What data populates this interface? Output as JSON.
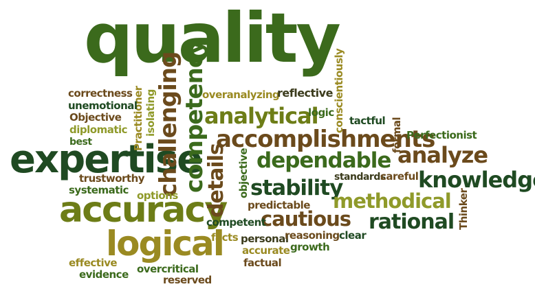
{
  "palette": {
    "dark_green": "#1f4a22",
    "green": "#3b6a1c",
    "olive": "#6d7d17",
    "brown": "#6b4a1c",
    "gold": "#9a8a22",
    "light_olive": "#8f9a2a"
  },
  "words": [
    {
      "id": "quality",
      "text": "quality"
    },
    {
      "id": "expertise",
      "text": "expertise"
    },
    {
      "id": "accuracy",
      "text": "accuracy"
    },
    {
      "id": "logical",
      "text": "logical"
    },
    {
      "id": "accomplishments",
      "text": "accomplishments"
    },
    {
      "id": "analytical",
      "text": "analytical"
    },
    {
      "id": "dependable",
      "text": "dependable"
    },
    {
      "id": "stability",
      "text": "stability"
    },
    {
      "id": "methodical",
      "text": "methodical"
    },
    {
      "id": "knowledge",
      "text": "knowledge"
    },
    {
      "id": "analyze",
      "text": "analyze"
    },
    {
      "id": "cautious",
      "text": "cautious"
    },
    {
      "id": "rational",
      "text": "rational"
    },
    {
      "id": "challenging",
      "text": "challenging"
    },
    {
      "id": "competency",
      "text": "competency"
    },
    {
      "id": "details",
      "text": "details"
    },
    {
      "id": "isolating",
      "text": "isolating"
    },
    {
      "id": "practitioner",
      "text": "Practitioner"
    },
    {
      "id": "conscientiously",
      "text": "conscientiously"
    },
    {
      "id": "objective_v",
      "text": "objective"
    },
    {
      "id": "formal",
      "text": "formal"
    },
    {
      "id": "thinker",
      "text": "Thinker"
    },
    {
      "id": "correctness",
      "text": "correctness"
    },
    {
      "id": "unemotional",
      "text": "unemotional"
    },
    {
      "id": "objective_h",
      "text": "Objective"
    },
    {
      "id": "diplomatic",
      "text": "diplomatic"
    },
    {
      "id": "best",
      "text": "best"
    },
    {
      "id": "overanalyzing",
      "text": "overanalyzing"
    },
    {
      "id": "reflective",
      "text": "reflective"
    },
    {
      "id": "logic",
      "text": "logic"
    },
    {
      "id": "tactful",
      "text": "tactful"
    },
    {
      "id": "perfectionist",
      "text": "Perfectionist"
    },
    {
      "id": "trustworthy",
      "text": "trustworthy"
    },
    {
      "id": "systematic",
      "text": "systematic"
    },
    {
      "id": "options",
      "text": "options"
    },
    {
      "id": "standards",
      "text": "standards"
    },
    {
      "id": "careful",
      "text": "careful"
    },
    {
      "id": "predictable",
      "text": "predictable"
    },
    {
      "id": "competent",
      "text": "competent"
    },
    {
      "id": "facts",
      "text": "facts"
    },
    {
      "id": "personal",
      "text": "personal"
    },
    {
      "id": "reasoning",
      "text": "reasoning"
    },
    {
      "id": "clear",
      "text": "clear"
    },
    {
      "id": "accurate",
      "text": "accurate"
    },
    {
      "id": "growth",
      "text": "growth"
    },
    {
      "id": "factual",
      "text": "factual"
    },
    {
      "id": "effective",
      "text": "effective"
    },
    {
      "id": "evidence",
      "text": "evidence"
    },
    {
      "id": "overcritical",
      "text": "overcritical"
    },
    {
      "id": "reserved",
      "text": "reserved"
    }
  ]
}
